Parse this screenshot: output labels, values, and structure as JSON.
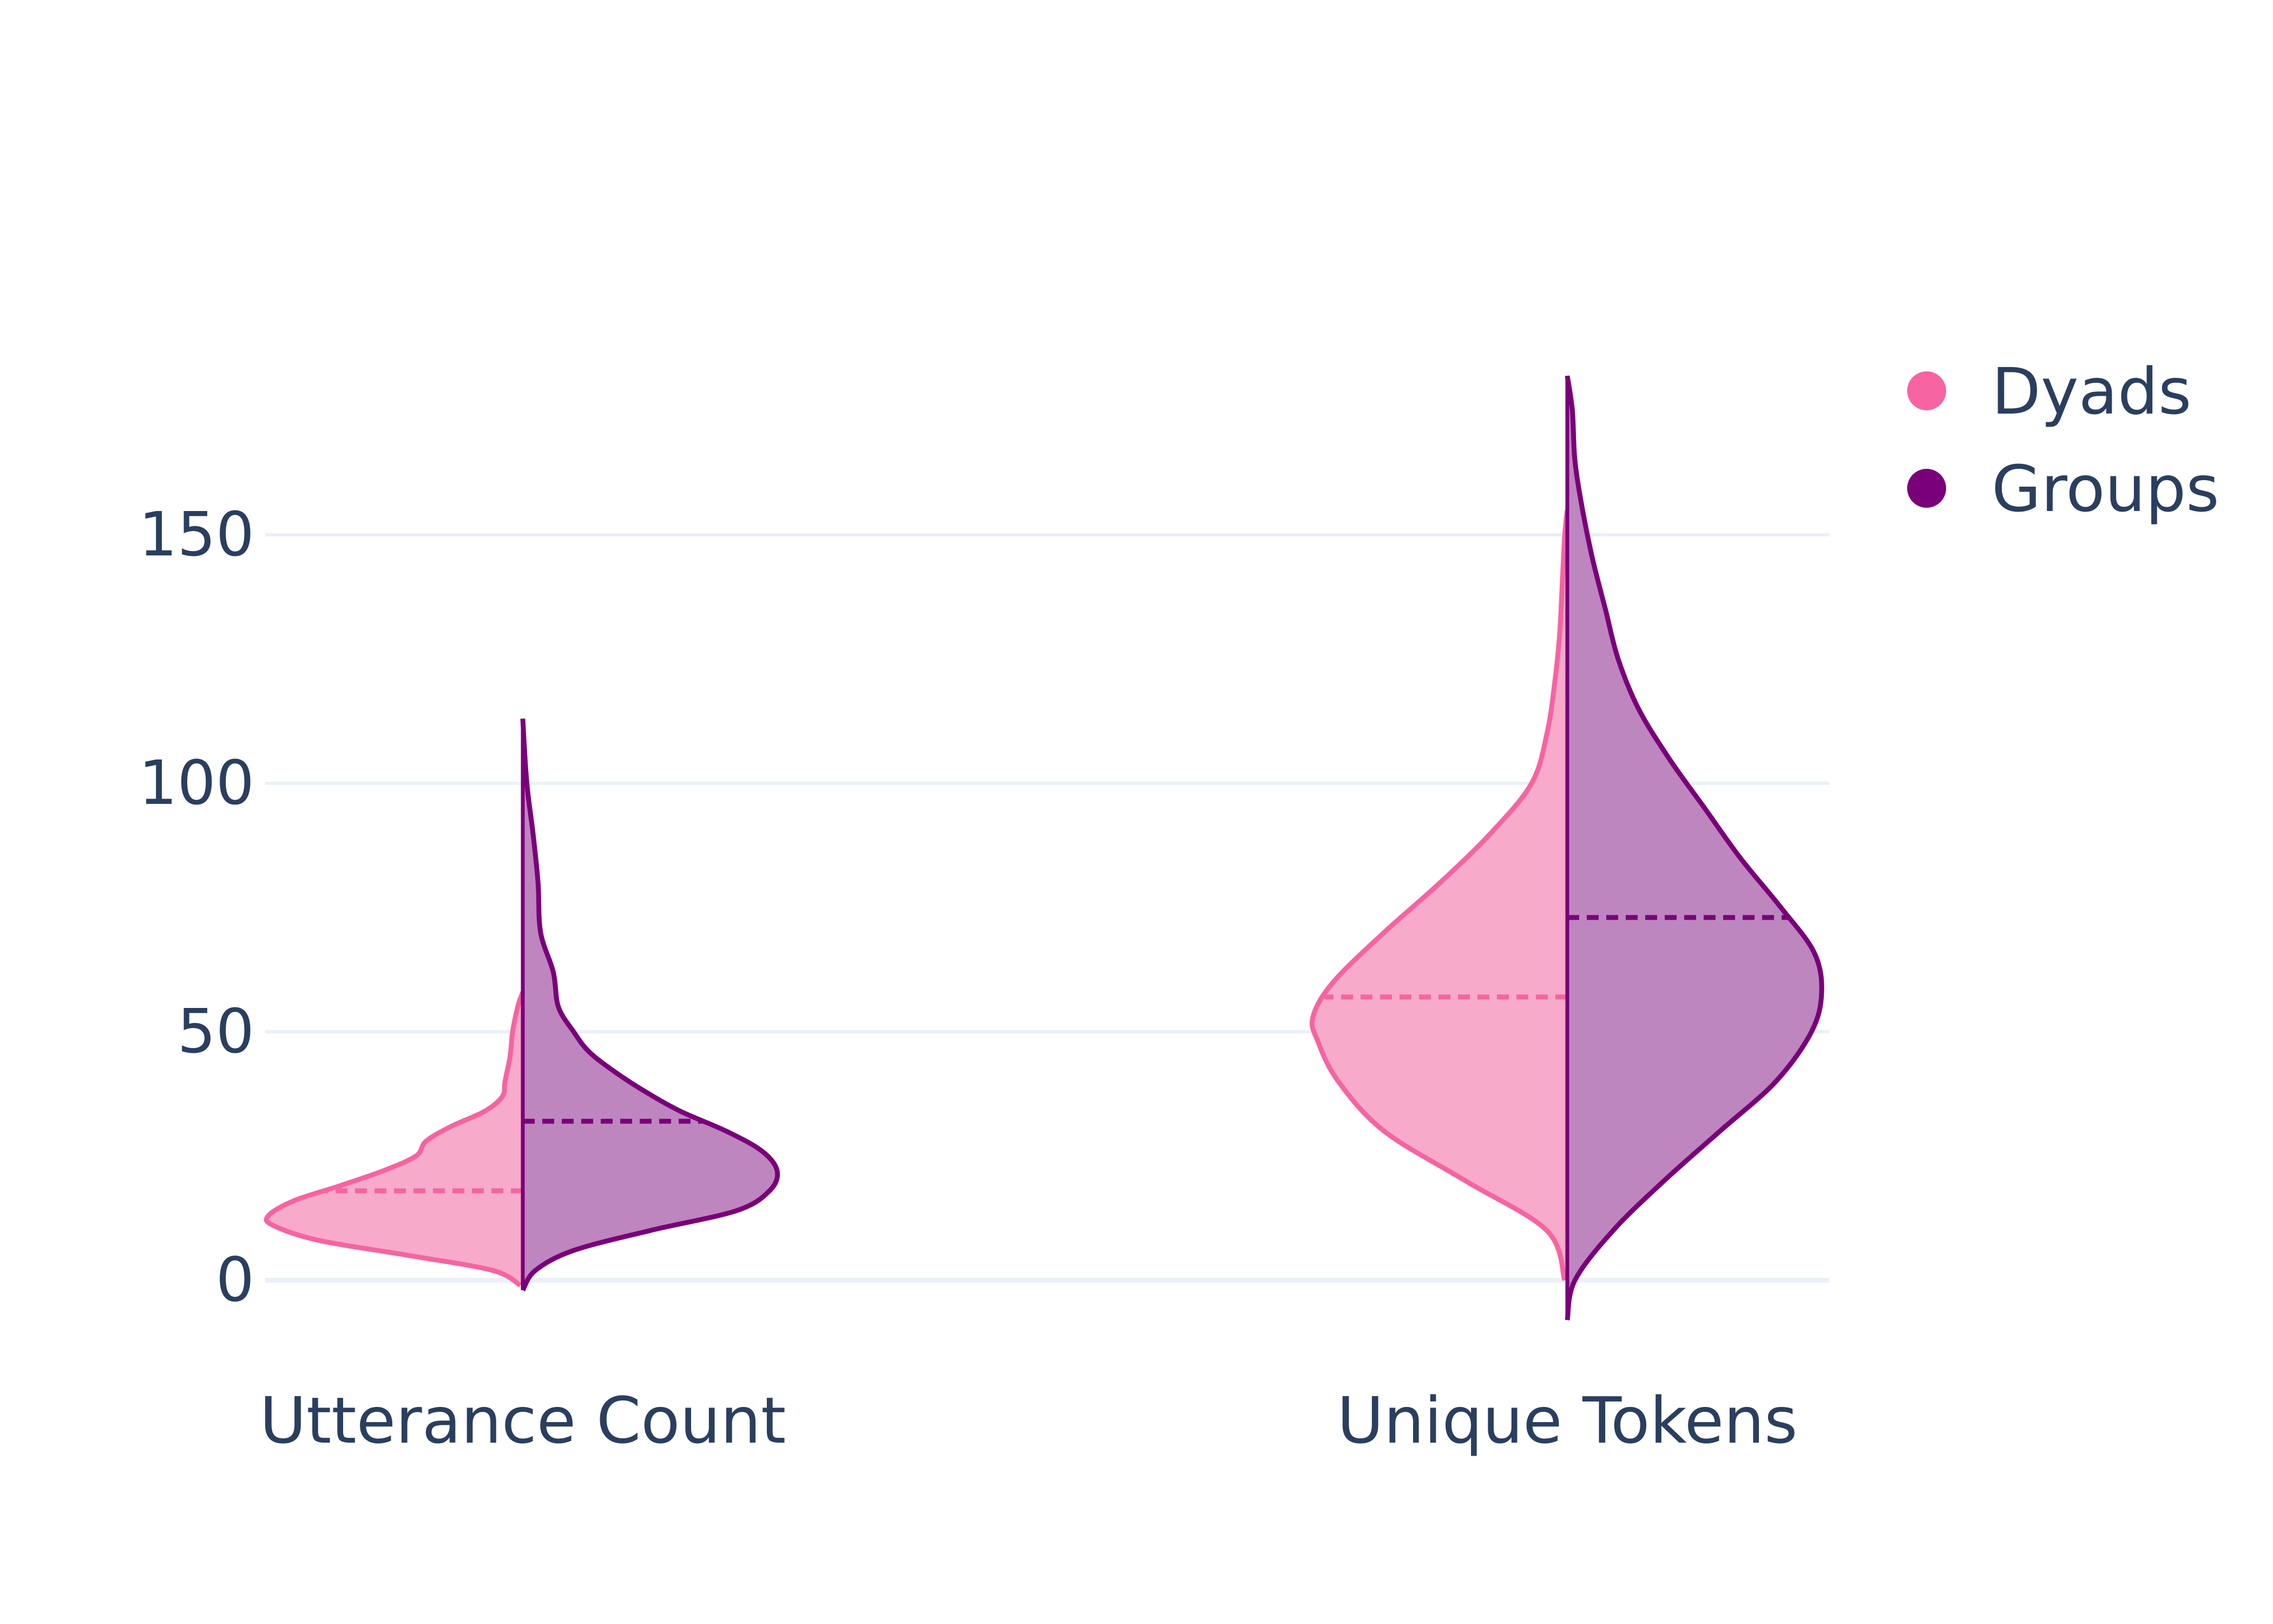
{
  "chart_data": {
    "type": "violin",
    "split": true,
    "categories": [
      "Utterance Count",
      "Unique Tokens"
    ],
    "yticks": [
      0,
      50,
      100,
      150
    ],
    "ylim": [
      -10,
      215
    ],
    "grid": true,
    "legend_placement": "top-right",
    "series": [
      {
        "name": "Dyads",
        "side": "left",
        "color": "#f564a0",
        "fill": "#f8a5c8",
        "violins": [
          {
            "category": "Utterance Count",
            "min": -1,
            "max": 58,
            "mean": 18,
            "density": [
              [
                -1,
                0.01
              ],
              [
                2,
                0.12
              ],
              [
                5,
                0.45
              ],
              [
                8,
                0.8
              ],
              [
                11,
                0.98
              ],
              [
                13,
                1.0
              ],
              [
                16,
                0.9
              ],
              [
                19,
                0.72
              ],
              [
                22,
                0.55
              ],
              [
                25,
                0.42
              ],
              [
                28,
                0.38
              ],
              [
                31,
                0.28
              ],
              [
                34,
                0.15
              ],
              [
                37,
                0.08
              ],
              [
                40,
                0.07
              ],
              [
                45,
                0.05
              ],
              [
                50,
                0.04
              ],
              [
                55,
                0.02
              ],
              [
                58,
                0.0
              ]
            ]
          },
          {
            "category": "Unique Tokens",
            "min": 0,
            "max": 155,
            "mean": 57,
            "density": [
              [
                0,
                0.01
              ],
              [
                10,
                0.08
              ],
              [
                20,
                0.4
              ],
              [
                30,
                0.72
              ],
              [
                40,
                0.9
              ],
              [
                48,
                0.98
              ],
              [
                53,
                1.0
              ],
              [
                60,
                0.92
              ],
              [
                70,
                0.72
              ],
              [
                80,
                0.5
              ],
              [
                90,
                0.3
              ],
              [
                100,
                0.14
              ],
              [
                110,
                0.08
              ],
              [
                120,
                0.05
              ],
              [
                130,
                0.03
              ],
              [
                140,
                0.02
              ],
              [
                150,
                0.01
              ],
              [
                155,
                0.0
              ]
            ]
          }
        ]
      },
      {
        "name": "Groups",
        "side": "right",
        "color": "#7a007a",
        "fill": "#bb80bb",
        "violins": [
          {
            "category": "Utterance Count",
            "min": -2,
            "max": 113,
            "mean": 32,
            "density": [
              [
                -2,
                0.0
              ],
              [
                2,
                0.05
              ],
              [
                6,
                0.2
              ],
              [
                10,
                0.5
              ],
              [
                14,
                0.84
              ],
              [
                18,
                0.97
              ],
              [
                22,
                1.0
              ],
              [
                26,
                0.94
              ],
              [
                30,
                0.8
              ],
              [
                34,
                0.62
              ],
              [
                38,
                0.48
              ],
              [
                42,
                0.36
              ],
              [
                46,
                0.26
              ],
              [
                50,
                0.2
              ],
              [
                55,
                0.14
              ],
              [
                62,
                0.12
              ],
              [
                70,
                0.07
              ],
              [
                80,
                0.06
              ],
              [
                90,
                0.04
              ],
              [
                98,
                0.02
              ],
              [
                104,
                0.01
              ],
              [
                113,
                0.0
              ]
            ]
          },
          {
            "category": "Unique Tokens",
            "min": -8,
            "max": 182,
            "mean": 73,
            "density": [
              [
                -8,
                0.0
              ],
              [
                0,
                0.03
              ],
              [
                10,
                0.18
              ],
              [
                20,
                0.38
              ],
              [
                30,
                0.6
              ],
              [
                40,
                0.82
              ],
              [
                50,
                0.96
              ],
              [
                58,
                1.0
              ],
              [
                66,
                0.97
              ],
              [
                75,
                0.84
              ],
              [
                85,
                0.68
              ],
              [
                95,
                0.54
              ],
              [
                105,
                0.4
              ],
              [
                115,
                0.28
              ],
              [
                125,
                0.2
              ],
              [
                135,
                0.15
              ],
              [
                145,
                0.1
              ],
              [
                155,
                0.06
              ],
              [
                165,
                0.03
              ],
              [
                175,
                0.02
              ],
              [
                182,
                0.0
              ]
            ]
          }
        ]
      }
    ]
  }
}
